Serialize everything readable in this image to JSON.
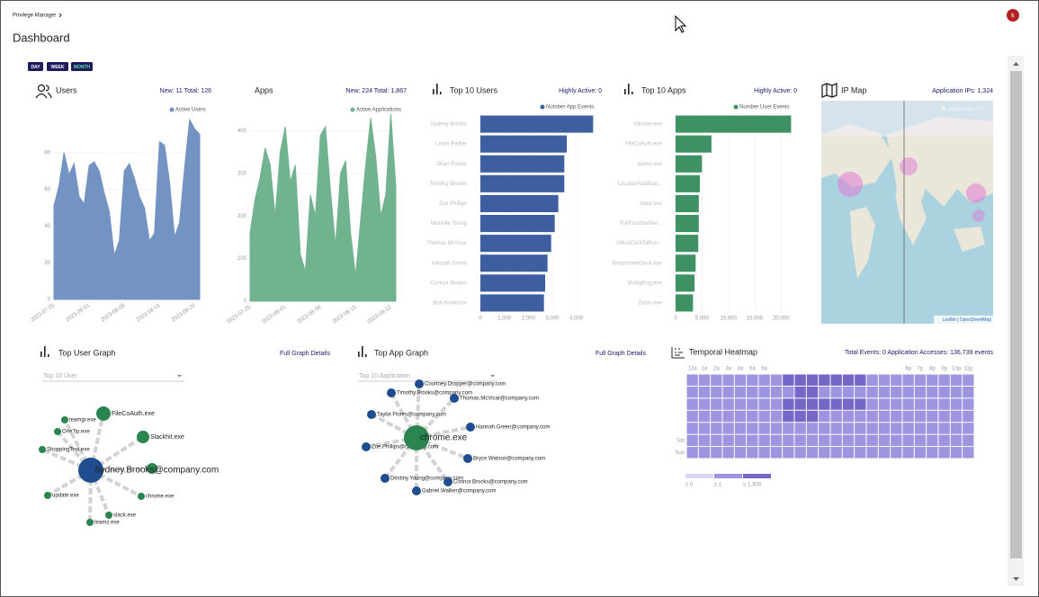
{
  "header": {
    "breadcrumb": "Privilege Manager",
    "title": "Dashboard",
    "avatar": "k"
  },
  "range_buttons": [
    "DAY",
    "WEEK",
    "MONTH"
  ],
  "chart_data": [
    {
      "type": "area",
      "title": "Users",
      "stats": "New: 11   Total: 126",
      "categories": [
        "2023-07-25",
        null,
        null,
        null,
        null,
        null,
        null,
        "2023-08-01",
        null,
        null,
        null,
        null,
        null,
        null,
        "2023-08-08",
        null,
        null,
        null,
        null,
        null,
        null,
        "2023-08-15",
        null,
        null,
        null,
        null,
        null,
        null,
        "2023-08-22",
        null
      ],
      "series": [
        {
          "name": "Active Users",
          "color": "#7393c2",
          "values": [
            51,
            62,
            80,
            68,
            74,
            56,
            52,
            73,
            75,
            70,
            58,
            48,
            24,
            32,
            70,
            74,
            66,
            56,
            50,
            32,
            36,
            86,
            84,
            64,
            34,
            42,
            72,
            98,
            93,
            90
          ]
        }
      ],
      "ylim": [
        0,
        100
      ],
      "yticks": [
        0,
        20,
        40,
        60,
        80
      ],
      "grid": true
    },
    {
      "type": "area",
      "title": "Apps",
      "stats": "New: 224   Total: 1,867",
      "categories": [
        "2023-07-25",
        null,
        null,
        null,
        null,
        null,
        null,
        "2023-08-01",
        null,
        null,
        null,
        null,
        null,
        null,
        "2023-08-08",
        null,
        null,
        null,
        null,
        null,
        null,
        "2023-08-15",
        null,
        null,
        null,
        null,
        null,
        null,
        "2023-08-22",
        null
      ],
      "series": [
        {
          "name": "Active Applications",
          "color": "#72b38f",
          "values": [
            160,
            240,
            290,
            360,
            320,
            200,
            350,
            410,
            280,
            320,
            110,
            70,
            250,
            200,
            390,
            410,
            260,
            130,
            300,
            330,
            160,
            60,
            190,
            320,
            430,
            340,
            200,
            250,
            440,
            270
          ]
        }
      ],
      "ylim": [
        0,
        450
      ],
      "yticks": [
        0,
        100,
        200,
        300,
        400
      ],
      "grid": true
    },
    {
      "type": "hbar",
      "title": "Top 10 Users",
      "stats": "Highly Active: 0",
      "categories": [
        "Sydney Brooks",
        "Leslie Parker",
        "Jillian Parker",
        "Timothy Brooks",
        "Zoe Phillips",
        "Michelle Young",
        "Thomas McVicar",
        "Hannah Green",
        "Connor Brooks",
        "Bob Anderson"
      ],
      "series": [
        {
          "name": "Number App Events",
          "color": "#3d5f9f",
          "values": [
            4700,
            3600,
            3500,
            3500,
            3250,
            3100,
            2950,
            2800,
            2700,
            2650
          ]
        }
      ],
      "xlim": [
        0,
        4800
      ],
      "xticks": [
        0,
        {
          "value": 1000,
          "label": "1,000"
        },
        {
          "value": 2000,
          "label": "2,000"
        },
        {
          "value": 3000,
          "label": "3,000"
        },
        {
          "value": 4000,
          "label": "4,000"
        }
      ],
      "grid": true
    },
    {
      "type": "hbar",
      "title": "Top 10 Apps",
      "stats": "Highly Active: 0",
      "categories": [
        "chrome.exe",
        "FileCoAuth.exe",
        "teams.exe",
        "LocationNotificat...",
        "slack.exe",
        "FullTrustNotifier...",
        "OfficeClickToRun...",
        "SmartsheetDesk.exe",
        "MsMpEng.exe",
        "Zoom.exe"
      ],
      "series": [
        {
          "name": "Number User Events",
          "color": "#3d9162",
          "values": [
            21900,
            6800,
            5000,
            4600,
            4400,
            4400,
            4300,
            3800,
            3600,
            3300
          ]
        }
      ],
      "xlim": [
        0,
        22000
      ],
      "xticks": [
        0,
        {
          "value": 5000,
          "label": "5,000"
        },
        {
          "value": 10000,
          "label": "10,000"
        },
        {
          "value": 15000,
          "label": "15,000"
        },
        {
          "value": 20000,
          "label": "20,000"
        }
      ],
      "grid": true
    },
    {
      "type": "heatmap",
      "title": "Temporal Heatmap",
      "stats": "Total Events: 0   Application Accesses: 136,739 events",
      "columns": [
        "12a",
        "1a",
        "2a",
        "3a",
        "4a",
        "5a",
        "6a",
        null,
        null,
        null,
        null,
        null,
        null,
        null,
        null,
        null,
        null,
        null,
        "6p",
        "7p",
        "8p",
        "9p",
        "10p",
        "11p"
      ],
      "rows": [
        null,
        null,
        null,
        null,
        null,
        "Sat",
        "Sun"
      ],
      "values": [
        [
          700,
          700,
          700,
          700,
          700,
          700,
          700,
          700,
          1500,
          1500,
          1500,
          1500,
          1500,
          1500,
          1500,
          700,
          700,
          700,
          700,
          700,
          700,
          700,
          700,
          700
        ],
        [
          700,
          700,
          700,
          700,
          700,
          700,
          700,
          700,
          700,
          1500,
          1500,
          700,
          700,
          700,
          700,
          700,
          700,
          700,
          700,
          700,
          700,
          700,
          700,
          700
        ],
        [
          700,
          700,
          700,
          700,
          700,
          700,
          700,
          700,
          1500,
          1500,
          1500,
          1500,
          1500,
          1500,
          1500,
          700,
          700,
          700,
          700,
          700,
          700,
          700,
          700,
          700
        ],
        [
          700,
          700,
          700,
          700,
          700,
          700,
          700,
          700,
          1500,
          1500,
          1500,
          700,
          700,
          700,
          700,
          700,
          700,
          700,
          700,
          700,
          700,
          700,
          700,
          700
        ],
        [
          700,
          700,
          700,
          700,
          700,
          700,
          700,
          700,
          700,
          700,
          700,
          700,
          700,
          700,
          700,
          700,
          700,
          700,
          700,
          700,
          700,
          700,
          700,
          700
        ],
        [
          700,
          700,
          700,
          700,
          700,
          700,
          700,
          700,
          700,
          700,
          700,
          700,
          700,
          700,
          700,
          700,
          700,
          700,
          700,
          700,
          700,
          700,
          700,
          700
        ],
        [
          700,
          700,
          700,
          700,
          700,
          700,
          700,
          700,
          700,
          700,
          700,
          700,
          700,
          700,
          700,
          700,
          700,
          700,
          700,
          700,
          700,
          700,
          700,
          700
        ]
      ],
      "legend": [
        {
          "value": 0,
          "label": "≥ 0"
        },
        {
          "value": 1,
          "label": "≥ 1"
        },
        {
          "value": 1309,
          "label": "≥ 1,309"
        }
      ],
      "colors": [
        "#d9d5f4",
        "#9d95e0",
        "#7367c7"
      ]
    }
  ],
  "ip_map": {
    "title": "IP Map",
    "stats": "Application IPs: 1,324",
    "legend": "Application IPs",
    "attribution": "Leaflet | OpenStreetMap"
  },
  "user_graph": {
    "title": "Top User Graph",
    "link": "Full Graph Details",
    "select": "Top 10 User",
    "center": {
      "label": "Sydney.Brooks@company.com",
      "group": "user"
    },
    "nodes": [
      {
        "label": "FileCoAuth.exe",
        "group": "app"
      },
      {
        "label": "teamgr.exe",
        "group": "app"
      },
      {
        "label": "OneTip.exe",
        "group": "app"
      },
      {
        "label": "ShoppingTool.exe",
        "group": "app"
      },
      {
        "label": "Slackhit.exe",
        "group": "app"
      },
      {
        "label": null,
        "group": "app"
      },
      {
        "label": "chrome.exe",
        "group": "app"
      },
      {
        "label": "slack.exe",
        "group": "app"
      },
      {
        "label": "teams.exe",
        "group": "app"
      },
      {
        "label": "update.exe",
        "group": "app"
      }
    ]
  },
  "app_graph": {
    "title": "Top App Graph",
    "link": "Full Graph Details",
    "select": "Top 10 Application",
    "center": {
      "label": "chrome.exe",
      "group": "app"
    },
    "nodes": [
      {
        "label": "Courtney.Dropper@company.com",
        "group": "user"
      },
      {
        "label": "Timothy.Brooks@company.com",
        "group": "user"
      },
      {
        "label": "Thomas.McVicar@company.com",
        "group": "user"
      },
      {
        "label": "Taylor.Flores@company.com",
        "group": "user"
      },
      {
        "label": "Hannah.Green@company.com",
        "group": "user"
      },
      {
        "label": "Zoe.Phillips@company.com",
        "group": "user"
      },
      {
        "label": "Bryce.Watson@company.com",
        "group": "user"
      },
      {
        "label": "Destiny.Young@company.com",
        "group": "user"
      },
      {
        "label": "Connor.Brooks@company.com",
        "group": "user"
      },
      {
        "label": "Gabriel.Walker@company.com",
        "group": "user"
      }
    ]
  },
  "graph_colors": {
    "user": "#1f4d8f",
    "app": "#2a8550"
  }
}
